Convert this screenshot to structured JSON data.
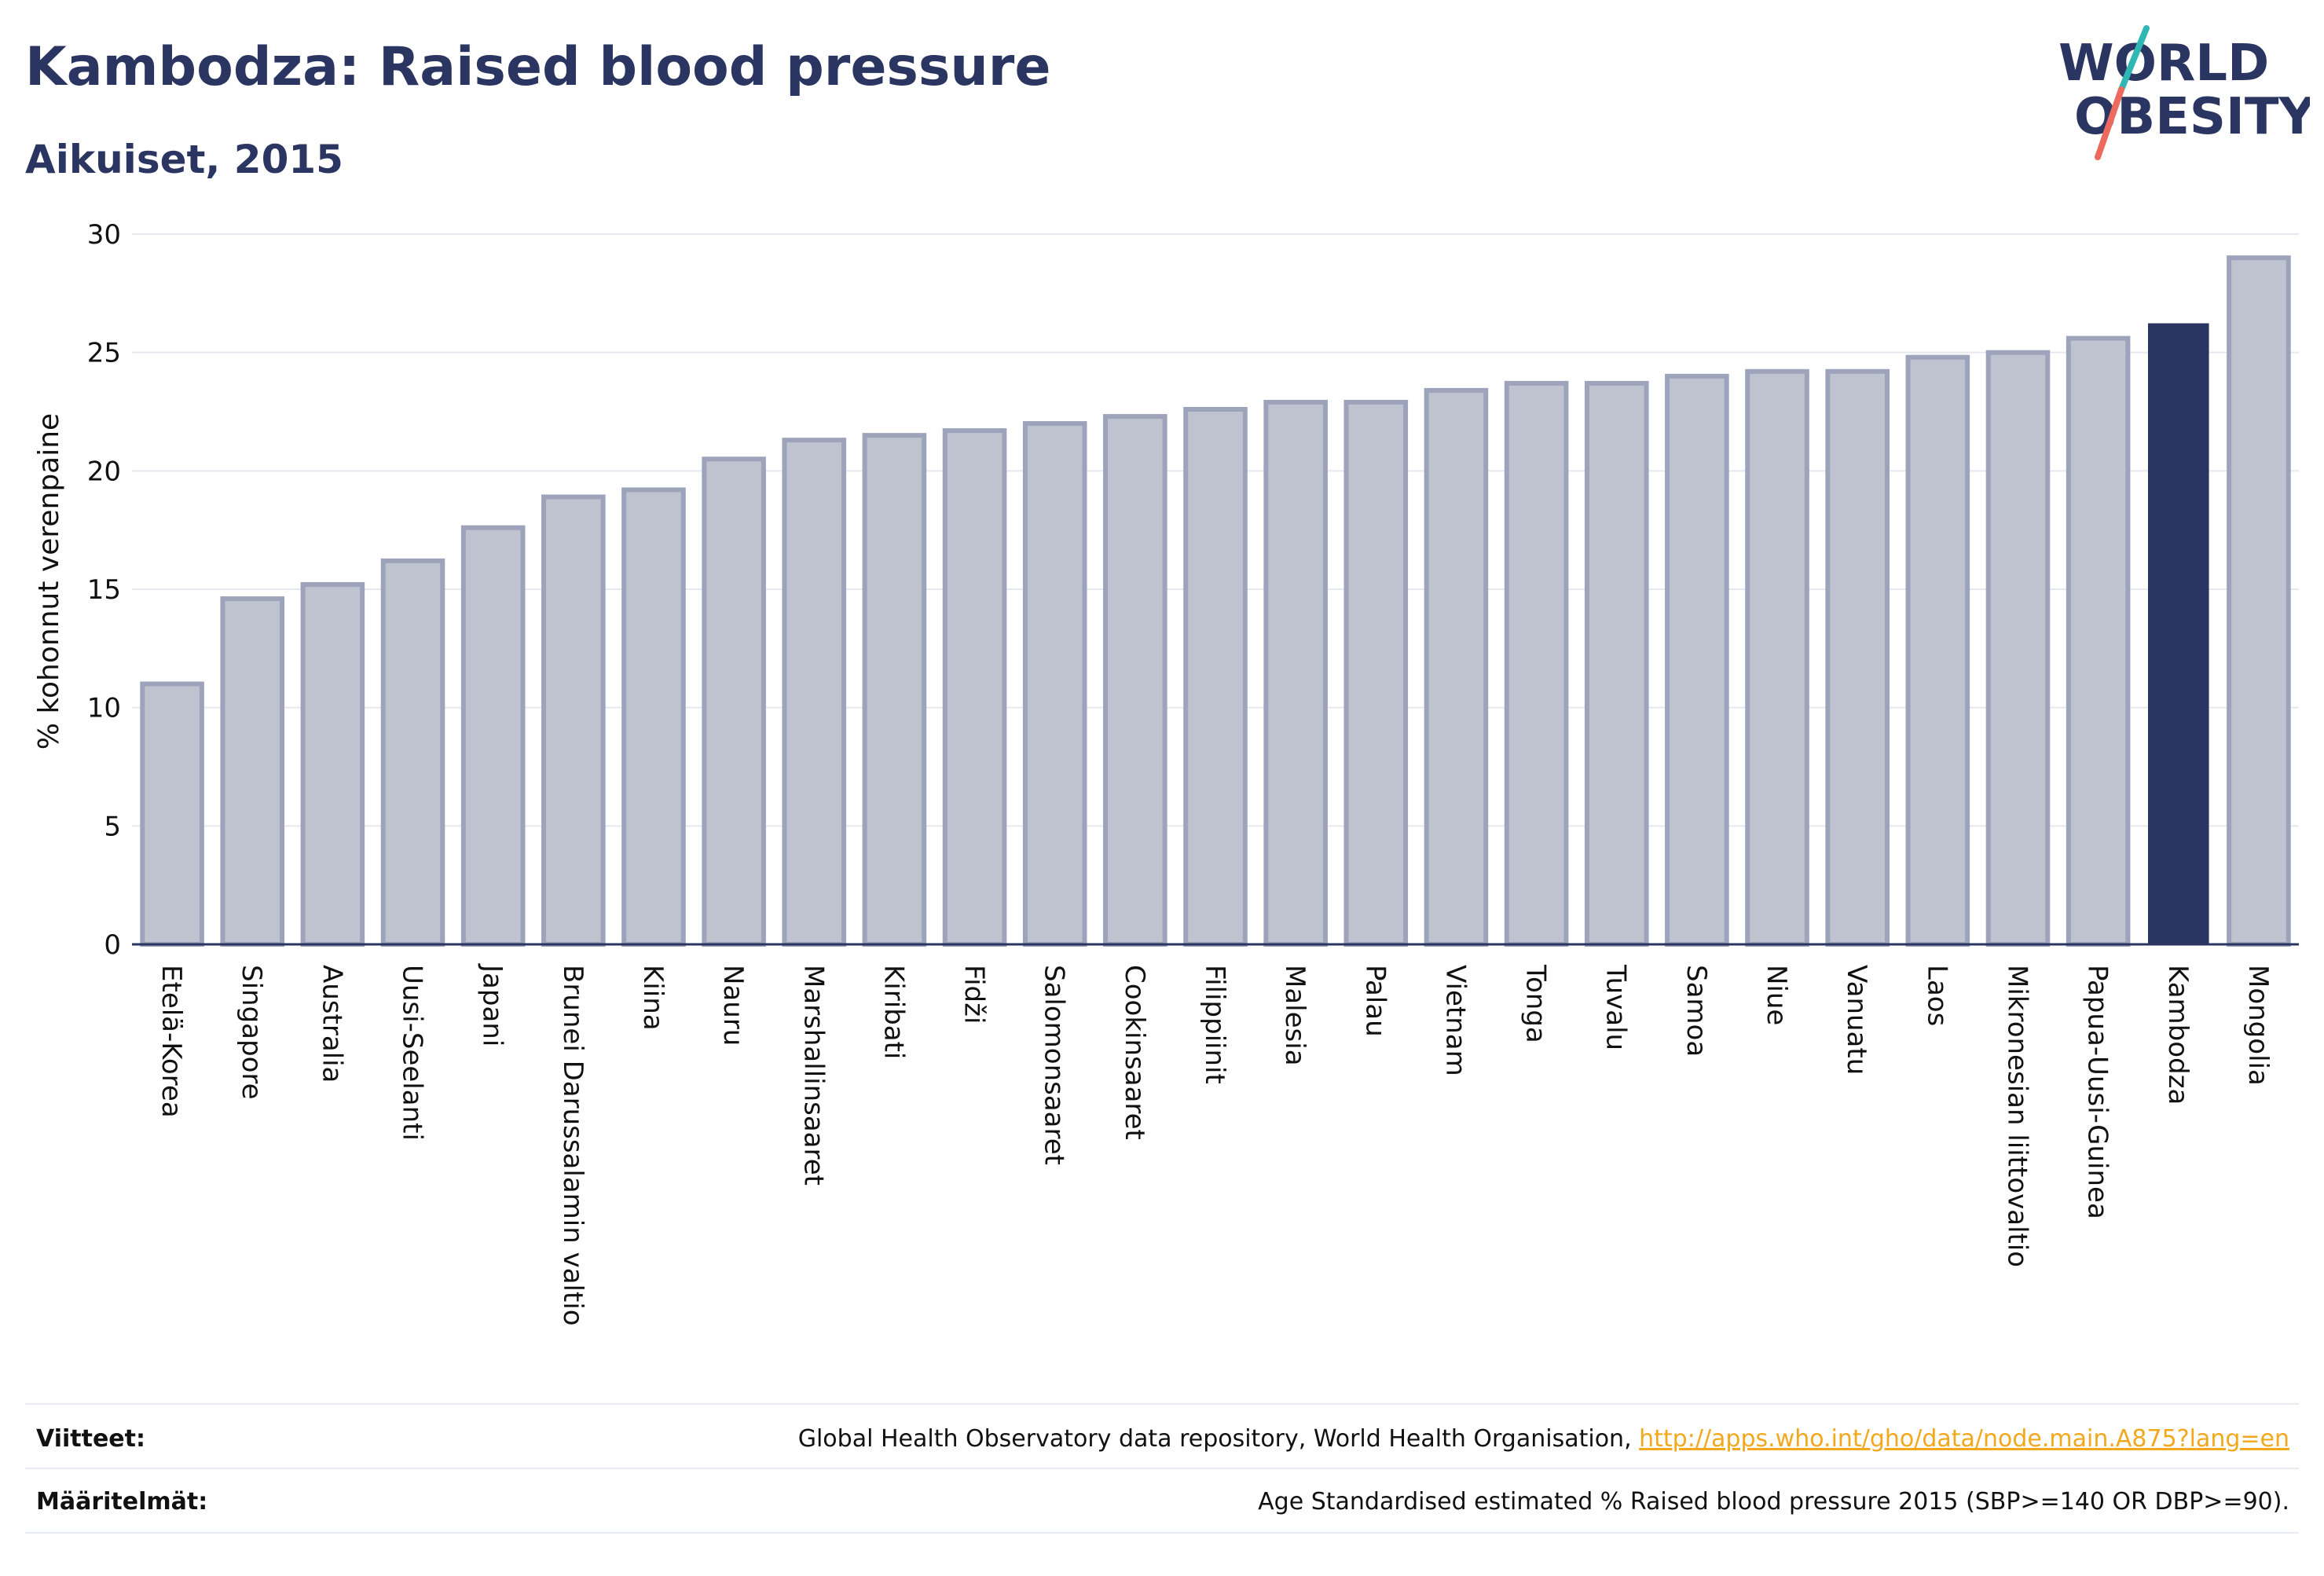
{
  "title": "Kambodza: Raised blood pressure",
  "subtitle": "Aikuiset, 2015",
  "logo": {
    "line1": "WORLD",
    "line2": "OBESITY"
  },
  "colors": {
    "accent": "#2b3561",
    "bar_fill": "#bfc3d0",
    "bar_stroke": "#9ca3ba",
    "highlight": "#2b3561",
    "link": "#f2a81d",
    "logo_slash_top": "#2fb8b3",
    "logo_slash_bottom": "#ec6b5e"
  },
  "chart_data": {
    "type": "bar",
    "ylabel": "% kohonnut verenpaine",
    "ylim": [
      0,
      30
    ],
    "yticks": [
      0,
      5,
      10,
      15,
      20,
      25,
      30
    ],
    "grid": true,
    "highlight": "Kambodza",
    "categories": [
      "Etelä-Korea",
      "Singapore",
      "Australia",
      "Uusi-Seelanti",
      "Japani",
      "Brunei Darussalamin valtio",
      "Kiina",
      "Nauru",
      "Marshallinsaaret",
      "Kiribati",
      "Fidži",
      "Salomonsaaret",
      "Cookinsaaret",
      "Filippiinit",
      "Malesia",
      "Palau",
      "Vietnam",
      "Tonga",
      "Tuvalu",
      "Samoa",
      "Niue",
      "Vanuatu",
      "Laos",
      "Mikronesian liittovaltio",
      "Papua-Uusi-Guinea",
      "Kambodza",
      "Mongolia"
    ],
    "values": [
      11.0,
      14.6,
      15.2,
      16.2,
      17.6,
      18.9,
      19.2,
      20.5,
      21.3,
      21.5,
      21.7,
      22.0,
      22.3,
      22.6,
      22.9,
      22.9,
      23.4,
      23.7,
      23.7,
      24.0,
      24.2,
      24.2,
      24.8,
      25.0,
      25.6,
      26.2,
      29.0
    ]
  },
  "footer": {
    "sources_label": "Viitteet:",
    "sources_text": "Global Health Observatory data repository, World Health Organisation, ",
    "sources_link": "http://apps.who.int/gho/data/node.main.A875?lang=en",
    "definitions_label": "Määritelmät:",
    "definitions_text": "Age Standardised estimated % Raised blood pressure 2015 (SBP>=140 OR DBP>=90)."
  }
}
